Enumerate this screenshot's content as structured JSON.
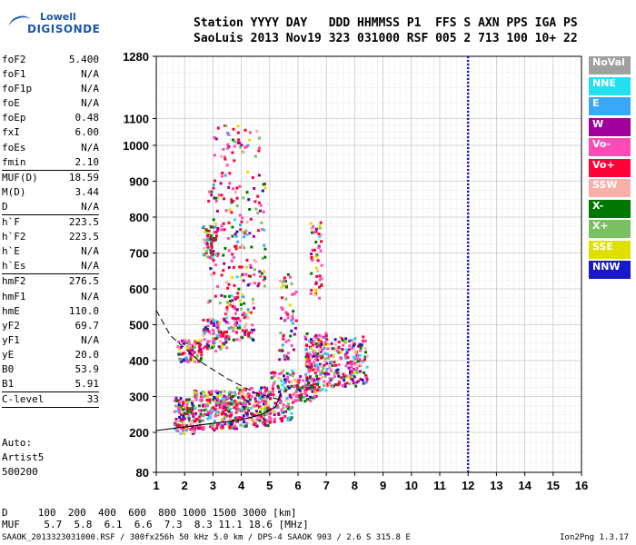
{
  "logo": {
    "line1": "Lowell",
    "line2": "DIGISONDE"
  },
  "header": {
    "row1": "Station YYYY DAY   DDD HHMMSS P1  FFS S AXN PPS IGA PS",
    "row2": "SaoLuis 2013 Nov19 323 031000 RSF 005 2 713 100 10+ 22"
  },
  "params": [
    {
      "label": "foF2",
      "value": "5.400"
    },
    {
      "label": "foF1",
      "value": "N/A"
    },
    {
      "label": "foF1p",
      "value": "N/A"
    },
    {
      "label": "foE",
      "value": "N/A"
    },
    {
      "label": "foEp",
      "value": "0.48"
    },
    {
      "label": "fxI",
      "value": "6.00"
    },
    {
      "label": "foEs",
      "value": "N/A"
    },
    {
      "label": "fmin",
      "value": "2.10",
      "sep": true
    },
    {
      "label": "MUF(D)",
      "value": "18.59"
    },
    {
      "label": "M(D)",
      "value": "3.44"
    },
    {
      "label": "D",
      "value": "N/A",
      "sep": true
    },
    {
      "label": "h`F",
      "value": "223.5"
    },
    {
      "label": "h`F2",
      "value": "223.5"
    },
    {
      "label": "h`E",
      "value": "N/A"
    },
    {
      "label": "h`Es",
      "value": "N/A",
      "sep": true
    },
    {
      "label": "hmF2",
      "value": "276.5"
    },
    {
      "label": "hmF1",
      "value": "N/A"
    },
    {
      "label": "hmE",
      "value": "110.0"
    },
    {
      "label": "yF2",
      "value": "69.7"
    },
    {
      "label": "yF1",
      "value": "N/A"
    },
    {
      "label": "yE",
      "value": "20.0"
    },
    {
      "label": "B0",
      "value": "53.9"
    },
    {
      "label": "B1",
      "value": "5.91",
      "sep": true
    },
    {
      "label": "C-level",
      "value": "33",
      "sep": true
    }
  ],
  "autoscale": {
    "line1": "Auto:",
    "line2": "Artist5",
    "line3": "500200"
  },
  "legend": [
    {
      "label": "NoVal",
      "color": "#a0a0a0"
    },
    {
      "label": "NNE",
      "color": "#22e0f0"
    },
    {
      "label": "E",
      "color": "#3aa8f8"
    },
    {
      "label": "W",
      "color": "#a0009c"
    },
    {
      "label": "Vo-",
      "color": "#ff4ab8"
    },
    {
      "label": "Vo+",
      "color": "#ff0038"
    },
    {
      "label": "SSW",
      "color": "#f8b0a8"
    },
    {
      "label": "X-",
      "color": "#007800"
    },
    {
      "label": "X+",
      "color": "#78c060"
    },
    {
      "label": "SSE",
      "color": "#e0e000"
    },
    {
      "label": "NNW",
      "color": "#1818c8"
    }
  ],
  "footer": {
    "row1": "D     100  200  400  600  800 1000 1500 3000 [km]",
    "row2": "MUF    5.7  5.8  6.1  6.6  7.3  8.3 11.1 18.6 [MHz]",
    "row3": "SAAOK_2013323031000.RSF / 300fx256h 50 kHz 5.0 km / DPS-4 SAAOK 903 / 2.6 S 315.8 E",
    "version": "Ion2Png 1.3.17"
  },
  "chart_data": {
    "type": "scatter",
    "xlim": [
      1,
      16
    ],
    "xticks": [
      1,
      2,
      3,
      4,
      5,
      6,
      7,
      8,
      9,
      10,
      11,
      12,
      13,
      14,
      15,
      16
    ],
    "yticks": [
      80,
      200,
      300,
      400,
      500,
      600,
      700,
      800,
      900,
      1000,
      1100,
      1280
    ],
    "ylabels": [
      "80",
      "200",
      "300",
      "400",
      "500",
      "600",
      "700",
      "800",
      "900",
      "1000",
      "1100",
      "1280"
    ],
    "marker_line_x": 12.0,
    "grid": true,
    "profile_curve": {
      "description_free": true,
      "x": [
        1.0,
        2.0,
        3.0,
        4.0,
        4.7,
        5.2,
        5.4
      ],
      "y": [
        205,
        215,
        225,
        235,
        250,
        270,
        310
      ]
    },
    "trace_dashed": {
      "x": [
        1.0,
        1.5,
        2.5,
        3.5,
        4.5,
        5.4
      ],
      "y": [
        540,
        470,
        400,
        350,
        310,
        290
      ]
    },
    "clusters": [
      {
        "x": [
          1.6,
          2.3
        ],
        "y": [
          200,
          300
        ],
        "n": 120
      },
      {
        "x": [
          2.3,
          3.8
        ],
        "y": [
          210,
          320
        ],
        "n": 260
      },
      {
        "x": [
          3.8,
          5.0
        ],
        "y": [
          220,
          330
        ],
        "n": 200
      },
      {
        "x": [
          5.0,
          5.8
        ],
        "y": [
          230,
          380
        ],
        "n": 100
      },
      {
        "x": [
          5.8,
          6.6
        ],
        "y": [
          290,
          360
        ],
        "n": 90
      },
      {
        "x": [
          6.2,
          7.0
        ],
        "y": [
          320,
          480
        ],
        "n": 160
      },
      {
        "x": [
          7.0,
          8.0
        ],
        "y": [
          330,
          470
        ],
        "n": 110
      },
      {
        "x": [
          7.8,
          8.4
        ],
        "y": [
          340,
          470
        ],
        "n": 70
      },
      {
        "x": [
          1.7,
          2.6
        ],
        "y": [
          400,
          460
        ],
        "n": 80
      },
      {
        "x": [
          2.6,
          3.5
        ],
        "y": [
          430,
          520
        ],
        "n": 90
      },
      {
        "x": [
          3.4,
          4.4
        ],
        "y": [
          460,
          560
        ],
        "n": 80
      },
      {
        "x": [
          2.8,
          4.8
        ],
        "y": [
          560,
          900
        ],
        "n": 180
      },
      {
        "x": [
          2.6,
          3.1
        ],
        "y": [
          690,
          780
        ],
        "n": 60
      },
      {
        "x": [
          3.0,
          4.6
        ],
        "y": [
          900,
          1080
        ],
        "n": 50
      },
      {
        "x": [
          5.3,
          5.9
        ],
        "y": [
          400,
          650
        ],
        "n": 60
      },
      {
        "x": [
          6.4,
          6.8
        ],
        "y": [
          560,
          790
        ],
        "n": 50
      }
    ]
  }
}
